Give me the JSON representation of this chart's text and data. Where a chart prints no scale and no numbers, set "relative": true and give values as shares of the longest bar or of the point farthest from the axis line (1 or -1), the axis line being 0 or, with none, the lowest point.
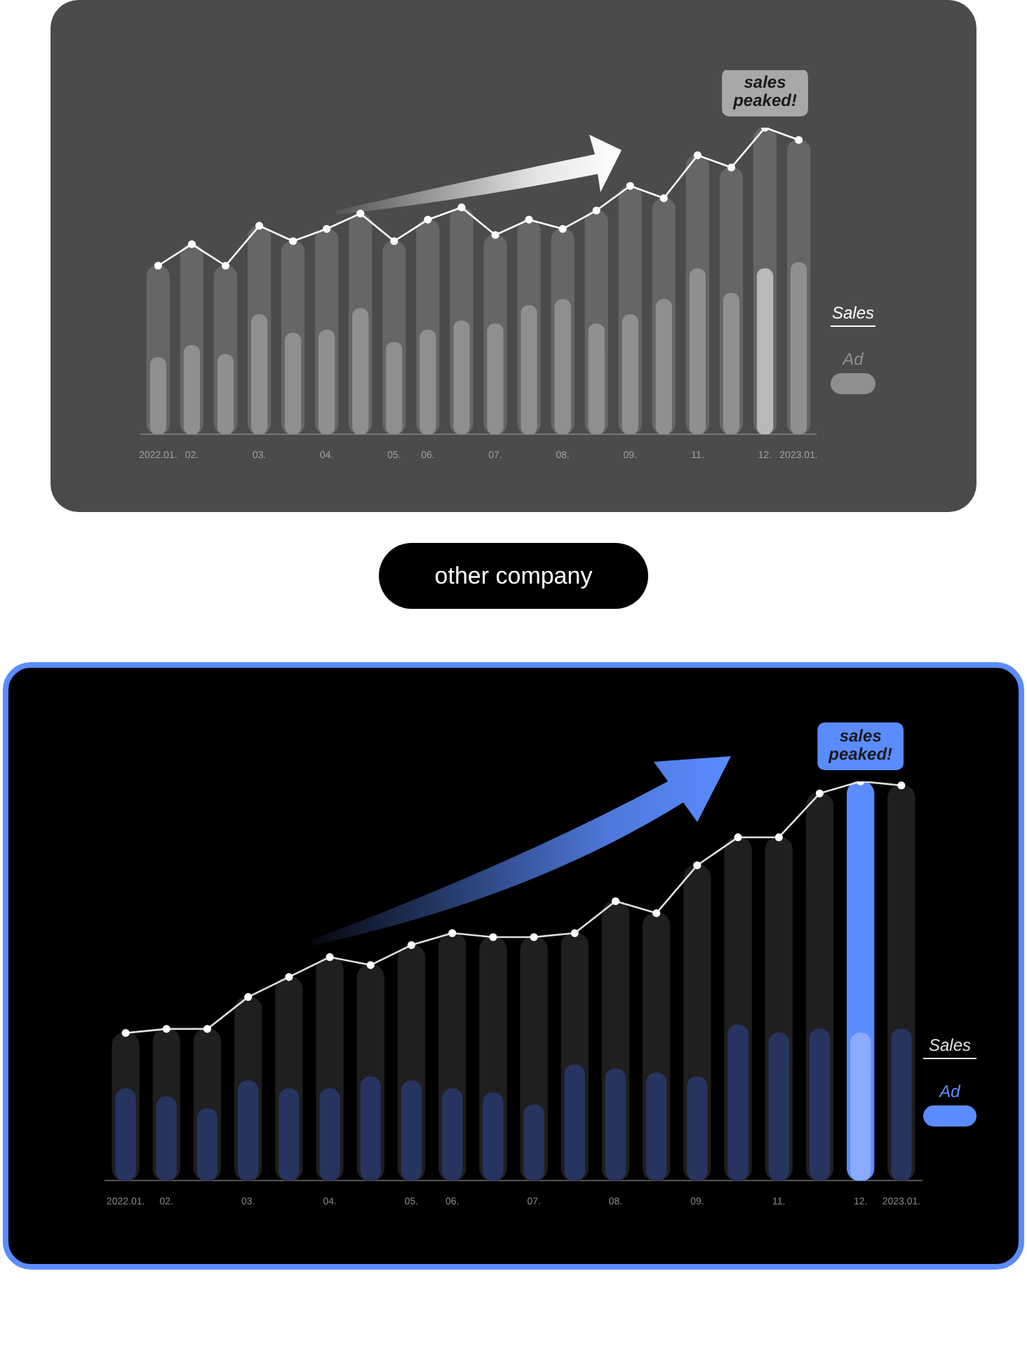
{
  "chart_data": [
    {
      "type": "bar",
      "relative": true,
      "categories": [
        "2022.01.",
        "02.",
        null,
        "03.",
        null,
        "04.",
        null,
        "05.",
        "06.",
        null,
        "07.",
        null,
        "08.",
        null,
        "09.",
        null,
        "11.",
        null,
        "12.",
        "2023.01."
      ],
      "legend": "right",
      "marker": "circle",
      "series": [
        {
          "name": "Sales",
          "type": "line",
          "color": "#ffffff",
          "values": [
            0.55,
            0.62,
            0.55,
            0.68,
            0.63,
            0.67,
            0.72,
            0.63,
            0.7,
            0.74,
            0.65,
            0.7,
            0.67,
            0.73,
            0.81,
            0.77,
            0.91,
            0.87,
            1,
            0.96
          ]
        },
        {
          "name": "Ad",
          "type": "bar",
          "color": "#8f8f8f",
          "colors": [
            "#8f8f8f",
            "#8f8f8f",
            "#8f8f8f",
            "#8f8f8f",
            "#8f8f8f",
            "#8f8f8f",
            "#8f8f8f",
            "#8f8f8f",
            "#8f8f8f",
            "#8f8f8f",
            "#8f8f8f",
            "#8f8f8f",
            "#8f8f8f",
            "#8f8f8f",
            "#8f8f8f",
            "#8f8f8f",
            "#8f8f8f",
            "#8f8f8f",
            "#b9b9b9",
            "#8f8f8f"
          ],
          "values": [
            0.25,
            0.29,
            0.26,
            0.39,
            0.33,
            0.34,
            0.41,
            0.3,
            0.34,
            0.37,
            0.36,
            0.42,
            0.44,
            0.36,
            0.39,
            0.44,
            0.54,
            0.46,
            0.54,
            0.56
          ]
        },
        {
          "type": "bar",
          "color": "#666666",
          "values": [
            0.55,
            0.62,
            0.55,
            0.68,
            0.63,
            0.67,
            0.72,
            0.63,
            0.7,
            0.74,
            0.65,
            0.7,
            0.67,
            0.73,
            0.81,
            0.77,
            0.91,
            0.87,
            1,
            0.96
          ]
        }
      ],
      "annotations": [
        {
          "text": "sales peaked!",
          "x": "12.",
          "y": 1
        },
        "other company"
      ]
    },
    {
      "type": "bar",
      "relative": true,
      "categories": [
        "2022.01.",
        "02.",
        null,
        "03.",
        null,
        "04.",
        null,
        "05.",
        "06.",
        null,
        "07.",
        null,
        "08.",
        null,
        "09.",
        null,
        "11.",
        null,
        "12.",
        "2023.01."
      ],
      "legend": "right",
      "marker": "circle",
      "series": [
        {
          "name": "Sales",
          "type": "line",
          "color": "#e0e0e0",
          "values": [
            0.37,
            0.38,
            0.38,
            0.46,
            0.51,
            0.56,
            0.54,
            0.59,
            0.62,
            0.61,
            0.61,
            0.62,
            0.7,
            0.67,
            0.79,
            0.86,
            0.86,
            0.97,
            1,
            0.99
          ]
        },
        {
          "name": "Ad",
          "type": "bar",
          "color": "#5b8cff",
          "colors": [
            "#27345f",
            "#27345f",
            "#27345f",
            "#27345f",
            "#27345f",
            "#27345f",
            "#27345f",
            "#27345f",
            "#27345f",
            "#27345f",
            "#27345f",
            "#27345f",
            "#27345f",
            "#27345f",
            "#27345f",
            "#27345f",
            "#27345f",
            "#27345f",
            "#8aabff",
            "#27345f"
          ],
          "values": [
            0.23,
            0.21,
            0.18,
            0.25,
            0.23,
            0.23,
            0.26,
            0.25,
            0.23,
            0.22,
            0.19,
            0.29,
            0.28,
            0.27,
            0.26,
            0.39,
            0.37,
            0.38,
            0.37,
            0.38
          ]
        },
        {
          "type": "bar",
          "color": "#1f1f1f",
          "colors": [
            null,
            null,
            null,
            null,
            null,
            null,
            null,
            null,
            null,
            null,
            null,
            null,
            null,
            null,
            null,
            null,
            null,
            null,
            "#5b8cff",
            null
          ],
          "values": [
            0.37,
            0.38,
            0.38,
            0.46,
            0.51,
            0.56,
            0.54,
            0.59,
            0.62,
            0.61,
            0.61,
            0.62,
            0.7,
            0.67,
            0.79,
            0.86,
            0.86,
            0.97,
            1,
            0.99
          ]
        }
      ],
      "annotations": [
        {
          "text": "sales peaked!",
          "x": "12.",
          "y": 1
        }
      ]
    }
  ]
}
